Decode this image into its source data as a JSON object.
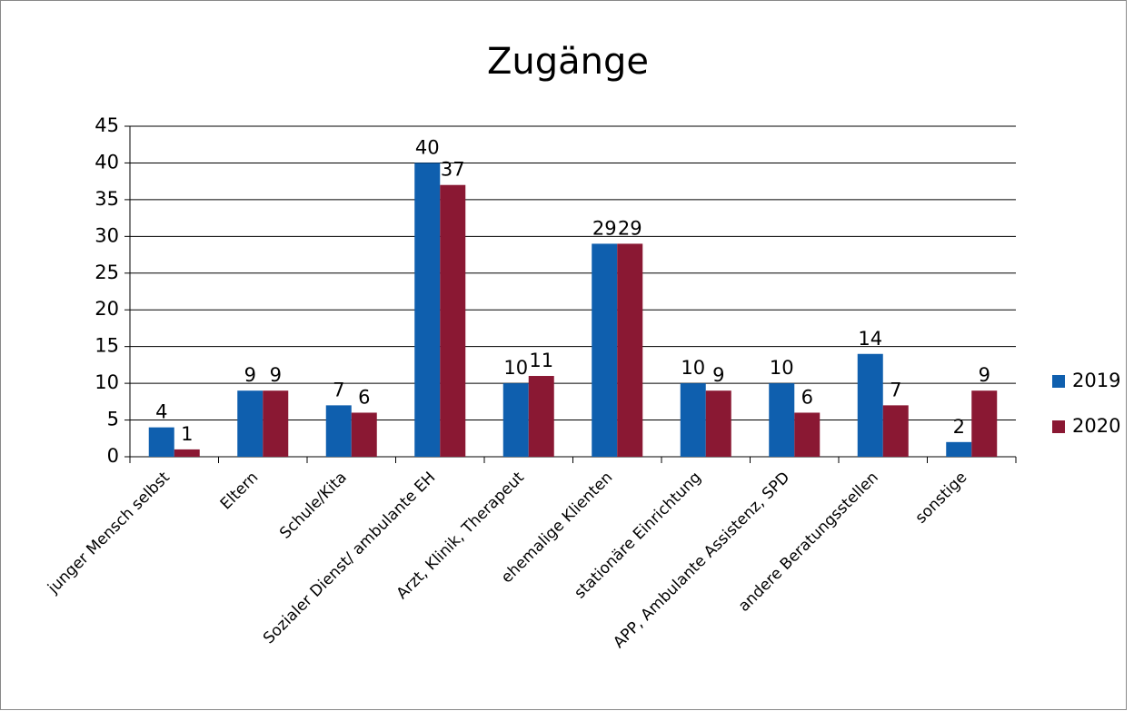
{
  "chart_data": {
    "type": "bar",
    "title": "Zugänge",
    "categories": [
      "junger Mensch selbst",
      "Eltern",
      "Schule/Kita",
      "Sozialer Dienst/ ambulante EH",
      "Arzt, Klinik, Therapeut",
      "ehemalige Klienten",
      "stationäre Einrichtung",
      "APP, Ambulante Assistenz, SPD",
      "andere Beratungsstellen",
      "sonstige"
    ],
    "series": [
      {
        "name": "2019",
        "color": "#0f5fae",
        "values": [
          4,
          9,
          7,
          40,
          10,
          29,
          10,
          10,
          14,
          2
        ]
      },
      {
        "name": "2020",
        "color": "#8a1833",
        "values": [
          1,
          9,
          6,
          37,
          11,
          29,
          9,
          6,
          7,
          9
        ]
      }
    ],
    "ylim": [
      0,
      45
    ],
    "yticks": [
      0,
      5,
      10,
      15,
      20,
      25,
      30,
      35,
      40,
      45
    ],
    "grid": true,
    "legend": "right"
  }
}
